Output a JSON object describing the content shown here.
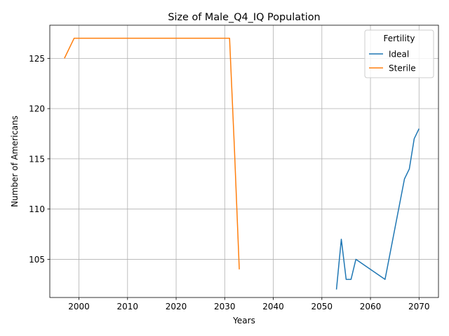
{
  "chart_data": {
    "type": "line",
    "title": "Size of Male_Q4_IQ Population",
    "xlabel": "Years",
    "ylabel": "Number of Americans",
    "xlim": [
      1994,
      2074
    ],
    "ylim": [
      101.2,
      128.3
    ],
    "xticks": [
      2000,
      2010,
      2020,
      2030,
      2040,
      2050,
      2060,
      2070
    ],
    "yticks": [
      105,
      110,
      115,
      120,
      125
    ],
    "grid": true,
    "legend": {
      "title": "Fertility",
      "placement": "top-right"
    },
    "series": [
      {
        "name": "Ideal",
        "color": "#1f77b4",
        "x": [
          2053,
          2054,
          2055,
          2056,
          2057,
          2063,
          2067,
          2068,
          2069,
          2070
        ],
        "y": [
          102,
          107,
          103,
          103,
          105,
          103,
          113,
          114,
          117,
          118
        ]
      },
      {
        "name": "Sterile",
        "color": "#ff7f0e",
        "x": [
          1997,
          1999,
          2031,
          2032,
          2033
        ],
        "y": [
          125,
          127,
          127,
          116,
          104
        ]
      }
    ]
  }
}
